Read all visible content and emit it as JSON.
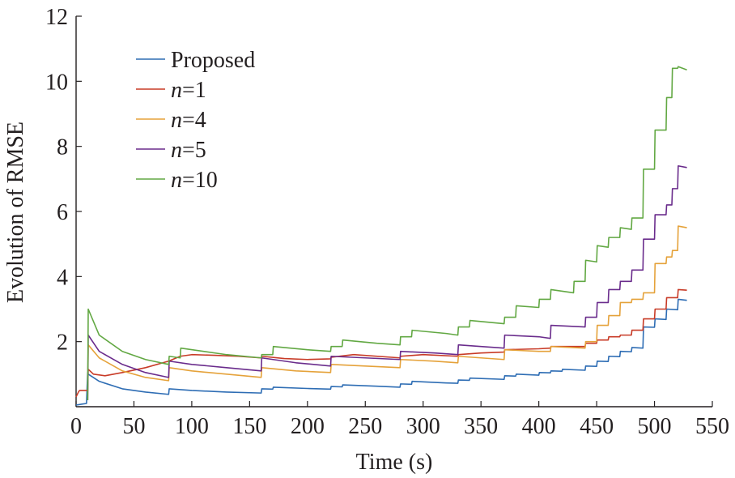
{
  "chart_data": {
    "type": "line",
    "title": "",
    "xlabel": "Time (s)",
    "ylabel": "Evolution of RMSE",
    "xlim": [
      0,
      550
    ],
    "ylim": [
      0,
      12
    ],
    "xticks": [
      0,
      50,
      100,
      150,
      200,
      250,
      300,
      350,
      400,
      450,
      500,
      550
    ],
    "yticks": [
      2,
      4,
      6,
      8,
      10,
      12
    ],
    "grid": false,
    "legend_position": "top-left",
    "series": [
      {
        "name": "Proposed",
        "name_var": "",
        "name_value": "Proposed",
        "color": "#2e6db4",
        "x": [
          0,
          5,
          9,
          10,
          10.5,
          20,
          40,
          60,
          80,
          80.5,
          100,
          130,
          160,
          160.5,
          170,
          170.5,
          200,
          220,
          220.5,
          230,
          230.5,
          260,
          280,
          280.5,
          290,
          290.5,
          320,
          330,
          330.5,
          340,
          340.5,
          370,
          370.5,
          380,
          380.5,
          400,
          400.5,
          410,
          410.5,
          420,
          420.5,
          440,
          440.5,
          450,
          450.5,
          460,
          460.5,
          470,
          470.5,
          480,
          480.5,
          490,
          490.5,
          500,
          500.5,
          510,
          510.5,
          520,
          520.5,
          528
        ],
        "y": [
          0.05,
          0.08,
          0.1,
          1.05,
          1.0,
          0.78,
          0.55,
          0.45,
          0.38,
          0.55,
          0.5,
          0.45,
          0.42,
          0.55,
          0.54,
          0.6,
          0.56,
          0.54,
          0.62,
          0.61,
          0.67,
          0.63,
          0.6,
          0.7,
          0.69,
          0.78,
          0.73,
          0.72,
          0.82,
          0.81,
          0.88,
          0.84,
          0.95,
          0.94,
          1.0,
          0.97,
          1.05,
          1.04,
          1.1,
          1.09,
          1.15,
          1.12,
          1.25,
          1.24,
          1.4,
          1.39,
          1.55,
          1.54,
          1.7,
          1.69,
          1.82,
          1.8,
          2.45,
          2.44,
          2.7,
          2.68,
          3.0,
          2.98,
          3.3,
          3.27
        ]
      },
      {
        "name": "n=1",
        "name_var": "n",
        "name_value": "=1",
        "color": "#c83b27",
        "x": [
          0,
          2,
          3,
          10,
          10.5,
          15,
          25,
          40,
          60,
          80,
          90,
          100,
          120,
          140,
          160,
          160.5,
          180,
          200,
          220,
          220.5,
          240,
          280,
          280.5,
          300,
          330,
          330.5,
          350,
          370,
          370.5,
          400,
          410,
          410.5,
          440,
          440.5,
          450,
          450.5,
          460,
          460.5,
          470,
          470.5,
          480,
          480.5,
          490,
          490.5,
          500,
          500.5,
          510,
          510.5,
          520,
          520.5,
          528
        ],
        "y": [
          0.3,
          0.45,
          0.5,
          0.5,
          1.15,
          1.0,
          0.95,
          1.05,
          1.2,
          1.4,
          1.55,
          1.6,
          1.58,
          1.55,
          1.5,
          1.55,
          1.48,
          1.45,
          1.47,
          1.52,
          1.6,
          1.5,
          1.55,
          1.6,
          1.55,
          1.6,
          1.65,
          1.68,
          1.75,
          1.78,
          1.8,
          1.85,
          1.85,
          1.95,
          1.95,
          2.05,
          2.05,
          2.15,
          2.15,
          2.2,
          2.2,
          2.35,
          2.35,
          2.7,
          2.7,
          3.0,
          3.0,
          3.35,
          3.35,
          3.6,
          3.58
        ]
      },
      {
        "name": "n=4",
        "name_var": "n",
        "name_value": "=4",
        "color": "#e5a23a",
        "x": [
          10,
          10.5,
          20,
          40,
          60,
          80,
          80.5,
          100,
          130,
          160,
          160.5,
          190,
          220,
          220.5,
          250,
          280,
          280.5,
          310,
          330,
          330.5,
          350,
          370,
          370.5,
          400,
          410,
          410.5,
          440,
          440.5,
          450,
          450.5,
          460,
          460.5,
          470,
          470.5,
          480,
          480.5,
          490,
          490.5,
          500,
          500.5,
          510,
          510.5,
          515,
          515.5,
          520,
          520.5,
          528
        ],
        "y": [
          0.2,
          1.9,
          1.5,
          1.1,
          0.9,
          0.8,
          1.2,
          1.1,
          1.0,
          0.9,
          1.2,
          1.1,
          1.05,
          1.3,
          1.25,
          1.2,
          1.45,
          1.4,
          1.35,
          1.55,
          1.5,
          1.45,
          1.75,
          1.7,
          1.7,
          1.85,
          1.8,
          2.0,
          2.0,
          2.5,
          2.5,
          2.8,
          2.8,
          3.2,
          3.2,
          3.3,
          3.3,
          3.5,
          3.5,
          4.4,
          4.4,
          4.6,
          4.6,
          4.8,
          4.8,
          5.55,
          5.5
        ]
      },
      {
        "name": "n=5",
        "name_var": "n",
        "name_value": "=5",
        "color": "#6a2c8c",
        "x": [
          10,
          10.5,
          20,
          40,
          60,
          80,
          80.5,
          100,
          130,
          160,
          160.5,
          190,
          220,
          220.5,
          250,
          280,
          280.5,
          310,
          330,
          330.5,
          350,
          370,
          370.5,
          400,
          410,
          410.5,
          440,
          440.5,
          450,
          450.5,
          460,
          460.5,
          470,
          470.5,
          480,
          480.5,
          490,
          490.5,
          500,
          500.5,
          510,
          510.5,
          515,
          515.5,
          520,
          520.5,
          528
        ],
        "y": [
          0.2,
          2.2,
          1.7,
          1.3,
          1.05,
          0.9,
          1.4,
          1.3,
          1.2,
          1.1,
          1.5,
          1.35,
          1.25,
          1.55,
          1.5,
          1.45,
          1.7,
          1.65,
          1.6,
          1.9,
          1.85,
          1.8,
          2.2,
          2.15,
          2.1,
          2.5,
          2.45,
          2.75,
          2.75,
          3.2,
          3.2,
          3.6,
          3.6,
          3.85,
          3.85,
          4.2,
          4.2,
          5.15,
          5.15,
          5.9,
          5.9,
          6.2,
          6.2,
          6.7,
          6.7,
          7.4,
          7.35
        ]
      },
      {
        "name": "n=10",
        "name_var": "n",
        "name_value": "=10",
        "color": "#62a843",
        "x": [
          10,
          10.5,
          20,
          40,
          60,
          80,
          80.5,
          90,
          90.5,
          130,
          160,
          160.5,
          170,
          170.5,
          200,
          220,
          220.5,
          230,
          230.5,
          260,
          280,
          280.5,
          290,
          290.5,
          320,
          330,
          330.5,
          340,
          340.5,
          370,
          370.5,
          380,
          380.5,
          400,
          400.5,
          410,
          410.5,
          430,
          430.5,
          440,
          440.5,
          450,
          450.5,
          460,
          460.5,
          470,
          470.5,
          480,
          480.5,
          490,
          490.5,
          500,
          500.5,
          510,
          510.5,
          515,
          515.5,
          520,
          520.5,
          528
        ],
        "y": [
          0.2,
          3.0,
          2.2,
          1.7,
          1.45,
          1.3,
          1.55,
          1.5,
          1.8,
          1.6,
          1.5,
          1.6,
          1.6,
          1.85,
          1.75,
          1.7,
          1.85,
          1.85,
          2.05,
          1.95,
          1.9,
          2.15,
          2.15,
          2.35,
          2.25,
          2.2,
          2.45,
          2.45,
          2.65,
          2.55,
          2.75,
          2.75,
          3.1,
          3.05,
          3.3,
          3.3,
          3.6,
          3.5,
          3.85,
          3.85,
          4.5,
          4.45,
          4.95,
          4.9,
          5.2,
          5.2,
          5.5,
          5.45,
          5.8,
          5.8,
          7.3,
          7.3,
          8.5,
          8.5,
          9.5,
          9.5,
          10.4,
          10.4,
          10.45,
          10.35
        ]
      }
    ]
  }
}
